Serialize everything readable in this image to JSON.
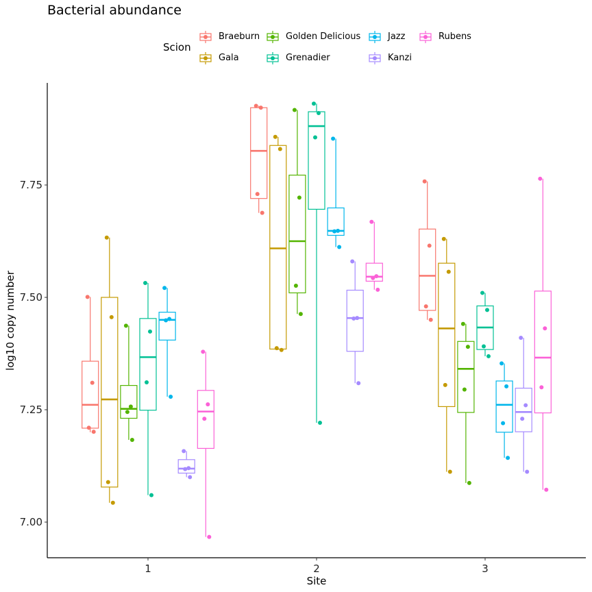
{
  "chart_data": {
    "type": "boxplot",
    "title": "Bacterial abundance",
    "xlabel": "Site",
    "ylabel": "log10 copy number",
    "categories": [
      "1",
      "2",
      "3"
    ],
    "yticks": [
      7.0,
      7.25,
      7.5,
      7.75
    ],
    "ytick_labels": [
      "7.00",
      "7.25",
      "7.50",
      "7.75"
    ],
    "ylim": [
      6.92,
      7.97
    ],
    "legend_title": "Scion",
    "legend_position": "top",
    "grid": false,
    "series": [
      {
        "name": "Braeburn",
        "color": "#F8766D",
        "boxes": [
          {
            "site": "1",
            "min": 7.2,
            "q1": 7.209,
            "median": 7.261,
            "q3": 7.358,
            "max": 7.501,
            "points": [
              7.501,
              7.31,
              7.21,
              7.201
            ]
          },
          {
            "site": "2",
            "min": 7.688,
            "q1": 7.72,
            "median": 7.826,
            "q3": 7.922,
            "max": 7.926,
            "points": [
              7.926,
              7.922,
              7.73,
              7.688
            ]
          },
          {
            "site": "3",
            "min": 7.45,
            "q1": 7.471,
            "median": 7.548,
            "q3": 7.652,
            "max": 7.758,
            "points": [
              7.758,
              7.615,
              7.48,
              7.45
            ]
          }
        ]
      },
      {
        "name": "Gala",
        "color": "#C49A00",
        "boxes": [
          {
            "site": "1",
            "min": 7.043,
            "q1": 7.078,
            "median": 7.273,
            "q3": 7.5,
            "max": 7.633,
            "points": [
              7.633,
              7.456,
              7.089,
              7.043
            ]
          },
          {
            "site": "2",
            "min": 7.383,
            "q1": 7.385,
            "median": 7.609,
            "q3": 7.838,
            "max": 7.857,
            "points": [
              7.857,
              7.83,
              7.387,
              7.383
            ]
          },
          {
            "site": "3",
            "min": 7.112,
            "q1": 7.257,
            "median": 7.431,
            "q3": 7.576,
            "max": 7.63,
            "points": [
              7.63,
              7.557,
              7.305,
              7.112
            ]
          }
        ]
      },
      {
        "name": "Golden Delicious",
        "color": "#53B400",
        "boxes": [
          {
            "site": "1",
            "min": 7.183,
            "q1": 7.231,
            "median": 7.252,
            "q3": 7.304,
            "max": 7.437,
            "points": [
              7.437,
              7.257,
              7.245,
              7.183
            ]
          },
          {
            "site": "2",
            "min": 7.463,
            "q1": 7.51,
            "median": 7.625,
            "q3": 7.772,
            "max": 7.917,
            "points": [
              7.917,
              7.722,
              7.526,
              7.463
            ]
          },
          {
            "site": "3",
            "min": 7.087,
            "q1": 7.244,
            "median": 7.341,
            "q3": 7.402,
            "max": 7.441,
            "points": [
              7.441,
              7.39,
              7.295,
              7.087
            ]
          }
        ]
      },
      {
        "name": "Grenadier",
        "color": "#00C094",
        "boxes": [
          {
            "site": "1",
            "min": 7.06,
            "q1": 7.249,
            "median": 7.367,
            "q3": 7.453,
            "max": 7.532,
            "points": [
              7.532,
              7.424,
              7.311,
              7.06
            ]
          },
          {
            "site": "2",
            "min": 7.221,
            "q1": 7.696,
            "median": 7.881,
            "q3": 7.913,
            "max": 7.931,
            "points": [
              7.931,
              7.91,
              7.856,
              7.221
            ]
          },
          {
            "site": "3",
            "min": 7.369,
            "q1": 7.384,
            "median": 7.433,
            "q3": 7.481,
            "max": 7.51,
            "points": [
              7.51,
              7.472,
              7.391,
              7.369
            ]
          }
        ]
      },
      {
        "name": "Jazz",
        "color": "#00B6EB",
        "boxes": [
          {
            "site": "1",
            "min": 7.279,
            "q1": 7.405,
            "median": 7.45,
            "q3": 7.467,
            "max": 7.521,
            "points": [
              7.521,
              7.452,
              7.449,
              7.279
            ]
          },
          {
            "site": "2",
            "min": 7.612,
            "q1": 7.638,
            "median": 7.648,
            "q3": 7.699,
            "max": 7.853,
            "points": [
              7.853,
              7.648,
              7.647,
              7.612
            ]
          },
          {
            "site": "3",
            "min": 7.143,
            "q1": 7.2,
            "median": 7.261,
            "q3": 7.314,
            "max": 7.353,
            "points": [
              7.353,
              7.302,
              7.22,
              7.143
            ]
          }
        ]
      },
      {
        "name": "Kanzi",
        "color": "#A58AFF",
        "boxes": [
          {
            "site": "1",
            "min": 7.1,
            "q1": 7.109,
            "median": 7.119,
            "q3": 7.139,
            "max": 7.158,
            "points": [
              7.158,
              7.12,
              7.118,
              7.1
            ]
          },
          {
            "site": "2",
            "min": 7.309,
            "q1": 7.38,
            "median": 7.454,
            "q3": 7.516,
            "max": 7.58,
            "points": [
              7.58,
              7.454,
              7.453,
              7.309
            ]
          },
          {
            "site": "3",
            "min": 7.112,
            "q1": 7.201,
            "median": 7.245,
            "q3": 7.298,
            "max": 7.41,
            "points": [
              7.41,
              7.26,
              7.23,
              7.112
            ]
          }
        ]
      },
      {
        "name": "Rubens",
        "color": "#FB61D7",
        "boxes": [
          {
            "site": "1",
            "min": 6.967,
            "q1": 7.164,
            "median": 7.246,
            "q3": 7.293,
            "max": 7.379,
            "points": [
              7.379,
              7.262,
              7.23,
              6.967
            ]
          },
          {
            "site": "2",
            "min": 7.517,
            "q1": 7.536,
            "median": 7.546,
            "q3": 7.576,
            "max": 7.668,
            "points": [
              7.668,
              7.547,
              7.543,
              7.517
            ]
          },
          {
            "site": "3",
            "min": 7.072,
            "q1": 7.243,
            "median": 7.366,
            "q3": 7.514,
            "max": 7.764,
            "points": [
              7.764,
              7.431,
              7.3,
              7.072
            ]
          }
        ]
      }
    ]
  }
}
